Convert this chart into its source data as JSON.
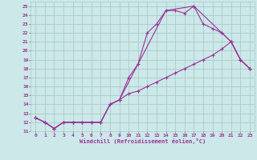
{
  "bg_color": "#cce8e8",
  "grid_color": "#aacccc",
  "line_color": "#993399",
  "xlabel": "Windchill (Refroidissement éolien,°C)",
  "xlim": [
    -0.5,
    23.5
  ],
  "ylim": [
    11,
    25.5
  ],
  "xticks": [
    0,
    1,
    2,
    3,
    4,
    5,
    6,
    7,
    8,
    9,
    10,
    11,
    12,
    13,
    14,
    15,
    16,
    17,
    18,
    19,
    20,
    21,
    22,
    23
  ],
  "yticks": [
    11,
    12,
    13,
    14,
    15,
    16,
    17,
    18,
    19,
    20,
    21,
    22,
    23,
    24,
    25
  ],
  "series1_x": [
    0,
    1,
    2,
    3,
    4,
    5,
    6,
    7,
    8,
    9,
    10,
    11,
    12,
    13,
    14,
    15,
    16,
    17,
    18,
    19,
    20,
    21,
    22,
    23
  ],
  "series1_y": [
    12.5,
    12.0,
    11.3,
    12.0,
    12.0,
    12.0,
    12.0,
    12.0,
    14.0,
    14.5,
    17.0,
    18.5,
    22.0,
    23.0,
    24.5,
    24.5,
    24.2,
    25.0,
    23.0,
    22.5,
    22.0,
    21.0,
    19.0,
    18.0
  ],
  "series2_x": [
    0,
    1,
    2,
    3,
    4,
    5,
    6,
    7,
    8,
    9,
    10,
    11,
    12,
    13,
    14,
    15,
    16,
    17,
    18,
    19,
    20,
    21,
    22,
    23
  ],
  "series2_y": [
    12.5,
    12.0,
    11.3,
    12.0,
    12.0,
    12.0,
    12.0,
    12.0,
    14.0,
    14.5,
    15.2,
    15.5,
    16.0,
    16.5,
    17.0,
    17.5,
    18.0,
    18.5,
    19.0,
    19.5,
    20.2,
    21.0,
    19.0,
    18.0
  ],
  "series3_x": [
    0,
    1,
    2,
    3,
    4,
    5,
    6,
    7,
    8,
    9,
    14,
    17,
    20,
    21,
    22,
    23
  ],
  "series3_y": [
    12.5,
    12.0,
    11.3,
    12.0,
    12.0,
    12.0,
    12.0,
    12.0,
    14.0,
    14.5,
    24.5,
    25.0,
    22.0,
    21.0,
    19.0,
    18.0
  ]
}
